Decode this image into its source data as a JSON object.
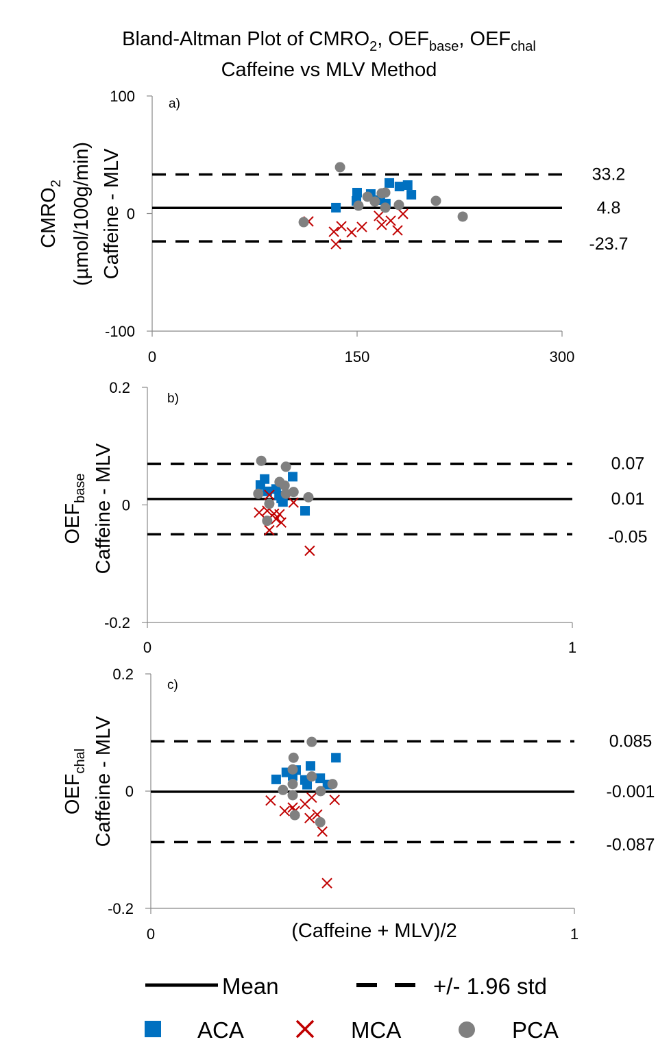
{
  "title": {
    "line1": [
      "Bland-Altman  Plot of CMRO",
      "2",
      ", OEF",
      "base",
      ", OEF",
      "chal"
    ],
    "line2": "Caffeine vs MLV Method"
  },
  "legend": {
    "mean_label": "Mean",
    "std_label": "+/- 1.96 std",
    "series": [
      "ACA",
      "MCA",
      "PCA"
    ]
  },
  "colors": {
    "ACA": "#0070C0",
    "MCA": "#C00000",
    "PCA": "#808080"
  },
  "chart_data": [
    {
      "type": "scatter",
      "panel_label": "a)",
      "ylabel_lines": [
        [
          "CMRO",
          "2",
          ""
        ],
        [
          "(µmol/100g/min)"
        ],
        [
          "Caffeine - MLV"
        ]
      ],
      "xlabel": "",
      "xlim": [
        0,
        300
      ],
      "ylim": [
        -100,
        100
      ],
      "xticks": [
        "0",
        "150",
        "300"
      ],
      "xtick_values": [
        0,
        150,
        300
      ],
      "yticks": [
        "100",
        "0",
        "-100"
      ],
      "ytick_values": [
        100,
        0,
        -100
      ],
      "mean": 4.8,
      "upper": 33.2,
      "lower": -23.7,
      "mean_label": "4.8",
      "upper_label": "33.2",
      "lower_label": "-23.7",
      "series": [
        {
          "name": "ACA",
          "points": [
            [
              134.5,
              5.0
            ],
            [
              150,
              17.8
            ],
            [
              149.5,
              10.8
            ],
            [
              160,
              16.6
            ],
            [
              173.6,
              26
            ],
            [
              181,
              23
            ],
            [
              187,
              24.2
            ],
            [
              189.7,
              16
            ],
            [
              171,
              8.5
            ],
            [
              167,
              11.4
            ]
          ]
        },
        {
          "name": "MCA",
          "points": [
            [
              114.4,
              -6.7
            ],
            [
              133,
              -15.5
            ],
            [
              138.5,
              -10.8
            ],
            [
              134.5,
              -26
            ],
            [
              146,
              -16
            ],
            [
              153.5,
              -11.4
            ],
            [
              166,
              -2
            ],
            [
              168,
              -9.6
            ],
            [
              174.6,
              -6.1
            ],
            [
              179.6,
              -14.3
            ],
            [
              183.6,
              -0.3
            ]
          ]
        },
        {
          "name": "PCA",
          "points": [
            [
              137.5,
              39.4
            ],
            [
              110.9,
              -7.3
            ],
            [
              151,
              6.7
            ],
            [
              157.6,
              14.3
            ],
            [
              163,
              10.2
            ],
            [
              168,
              17.2
            ],
            [
              170.6,
              17.8
            ],
            [
              170.6,
              5
            ],
            [
              180.6,
              7.3
            ],
            [
              207.7,
              10.8
            ],
            [
              227.3,
              -2.6
            ]
          ]
        }
      ]
    },
    {
      "type": "scatter",
      "panel_label": "b)",
      "ylabel_lines": [
        [
          "OEF",
          "base",
          ""
        ],
        [
          "Caffeine - MLV"
        ]
      ],
      "xlabel": "",
      "xlim": [
        0,
        1
      ],
      "ylim": [
        -0.2,
        0.2
      ],
      "xticks": [
        "0",
        "1"
      ],
      "xtick_values": [
        0,
        1
      ],
      "yticks": [
        "0.2",
        "0",
        "-0.2"
      ],
      "ytick_values": [
        0.2,
        0,
        -0.2
      ],
      "mean": 0.01,
      "upper": 0.07,
      "lower": -0.05,
      "mean_label": "0.01",
      "upper_label": "0.07",
      "lower_label": "-0.05",
      "series": [
        {
          "name": "ACA",
          "points": [
            [
              0.276,
              0.044
            ],
            [
              0.266,
              0.034
            ],
            [
              0.342,
              0.048
            ],
            [
              0.282,
              0.023
            ],
            [
              0.303,
              0.027
            ],
            [
              0.315,
              0.011
            ],
            [
              0.319,
              0.005
            ],
            [
              0.31,
              0.016
            ],
            [
              0.371,
              -0.01
            ]
          ]
        },
        {
          "name": "MCA",
          "points": [
            [
              0.287,
              0.017
            ],
            [
              0.344,
              0.004
            ],
            [
              0.263,
              -0.013
            ],
            [
              0.282,
              -0.01
            ],
            [
              0.298,
              -0.015
            ],
            [
              0.311,
              -0.016
            ],
            [
              0.303,
              -0.024
            ],
            [
              0.315,
              -0.03
            ],
            [
              0.287,
              -0.043
            ],
            [
              0.382,
              -0.078
            ]
          ]
        },
        {
          "name": "PCA",
          "points": [
            [
              0.268,
              0.075
            ],
            [
              0.326,
              0.065
            ],
            [
              0.311,
              0.039
            ],
            [
              0.323,
              0.033
            ],
            [
              0.261,
              0.019
            ],
            [
              0.344,
              0.022
            ],
            [
              0.379,
              0.013
            ],
            [
              0.287,
              0.002
            ],
            [
              0.282,
              -0.027
            ],
            [
              0.326,
              0.019
            ]
          ]
        }
      ]
    },
    {
      "type": "scatter",
      "panel_label": "c)",
      "ylabel_lines": [
        [
          "OEF",
          "chal",
          ""
        ],
        [
          "Caffeine - MLV"
        ]
      ],
      "xlabel": "(Caffeine + MLV)/2",
      "xlim": [
        0,
        1
      ],
      "ylim": [
        -0.2,
        0.2
      ],
      "xticks": [
        "0",
        "1"
      ],
      "xtick_values": [
        0,
        1
      ],
      "yticks": [
        "0.2",
        "0",
        "-0.2"
      ],
      "ytick_values": [
        0.2,
        0,
        -0.2
      ],
      "mean": -0.001,
      "upper": 0.085,
      "lower": -0.087,
      "mean_label": "-0.001",
      "upper_label": "0.085",
      "lower_label": "-0.087",
      "series": [
        {
          "name": "ACA",
          "points": [
            [
              0.296,
              0.02
            ],
            [
              0.32,
              0.032
            ],
            [
              0.343,
              0.036
            ],
            [
              0.377,
              0.043
            ],
            [
              0.364,
              0.019
            ],
            [
              0.369,
              0.011
            ],
            [
              0.4,
              0.022
            ],
            [
              0.417,
              0.011
            ],
            [
              0.437,
              0.057
            ],
            [
              0.335,
              0.026
            ]
          ]
        },
        {
          "name": "MCA",
          "points": [
            [
              0.283,
              -0.016
            ],
            [
              0.316,
              -0.034
            ],
            [
              0.335,
              -0.028
            ],
            [
              0.34,
              -0.034
            ],
            [
              0.364,
              -0.022
            ],
            [
              0.38,
              -0.011
            ],
            [
              0.375,
              -0.046
            ],
            [
              0.393,
              -0.04
            ],
            [
              0.405,
              -0.069
            ],
            [
              0.434,
              -0.015
            ],
            [
              0.416,
              -0.157
            ]
          ]
        },
        {
          "name": "PCA",
          "points": [
            [
              0.38,
              0.084
            ],
            [
              0.337,
              0.057
            ],
            [
              0.335,
              0.037
            ],
            [
              0.335,
              0.012
            ],
            [
              0.312,
              0.002
            ],
            [
              0.335,
              -0.007
            ],
            [
              0.38,
              0.025
            ],
            [
              0.401,
              0.0
            ],
            [
              0.429,
              0.012
            ],
            [
              0.34,
              -0.041
            ],
            [
              0.4,
              -0.053
            ]
          ]
        }
      ]
    }
  ]
}
